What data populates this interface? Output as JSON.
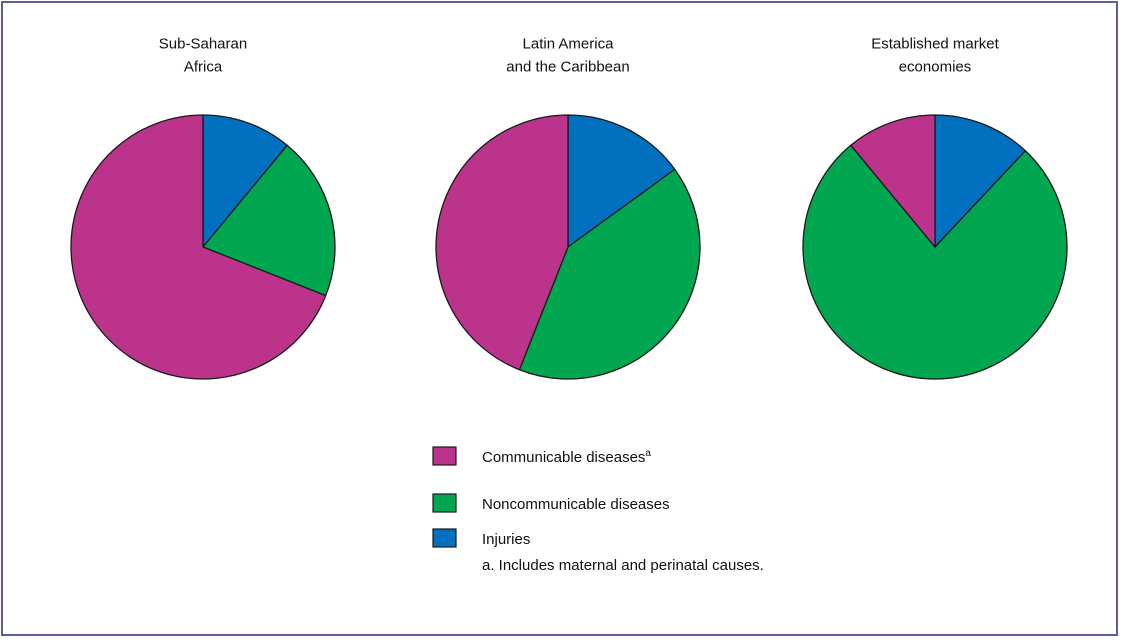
{
  "chart_data": {
    "type": "pie",
    "categories": [
      "Communicable diseases",
      "Noncommunicable diseases",
      "Injuries"
    ],
    "colors": [
      "#bb338a",
      "#00a650",
      "#0070bf"
    ],
    "category_note": "a",
    "charts": [
      {
        "title_lines": [
          "Sub-Saharan",
          "Africa"
        ],
        "values": [
          69,
          20,
          11
        ]
      },
      {
        "title_lines": [
          "Latin America",
          "and the Caribbean"
        ],
        "values": [
          44,
          41,
          15
        ]
      },
      {
        "title_lines": [
          "Established market",
          "economies"
        ],
        "values": [
          11,
          77,
          12
        ]
      }
    ],
    "footnote": "a. Includes maternal and perinatal causes."
  }
}
